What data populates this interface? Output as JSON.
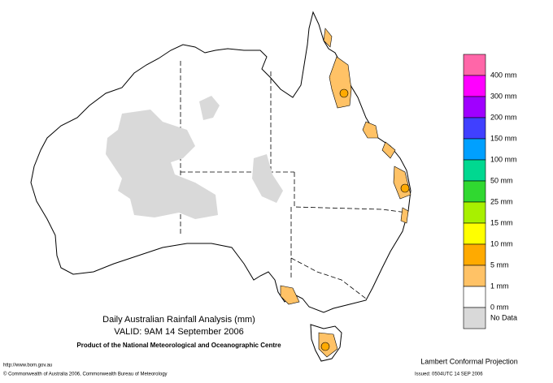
{
  "title": "Daily Australian Rainfall Analysis (mm)",
  "valid": "VALID: 9AM 14 September 2006",
  "product": "Product of the National Meteorological and Oceanographic Centre",
  "projection": "Lambert Conformal Projection",
  "url": "http://www.bom.gov.au",
  "copyright": "© Commonwealth of Australia 2006, Commonwealth Bureau of Meteorology",
  "issued": "Issued: 0504UTC 14 SEP 2006",
  "legend": {
    "colors": [
      "#ff66a8",
      "#ff00ff",
      "#a000ff",
      "#4040ff",
      "#00a0ff",
      "#00d890",
      "#30d830",
      "#a8f000",
      "#ffff00",
      "#ffaa00",
      "#ffc266",
      "#ffffff",
      "#d9d9d9"
    ],
    "labels": [
      "400 mm",
      "300 mm",
      "200 mm",
      "150 mm",
      "100 mm",
      "50 mm",
      "25 mm",
      "15 mm",
      "10 mm",
      "5 mm",
      "1 mm",
      "0 mm",
      "No Data"
    ]
  }
}
